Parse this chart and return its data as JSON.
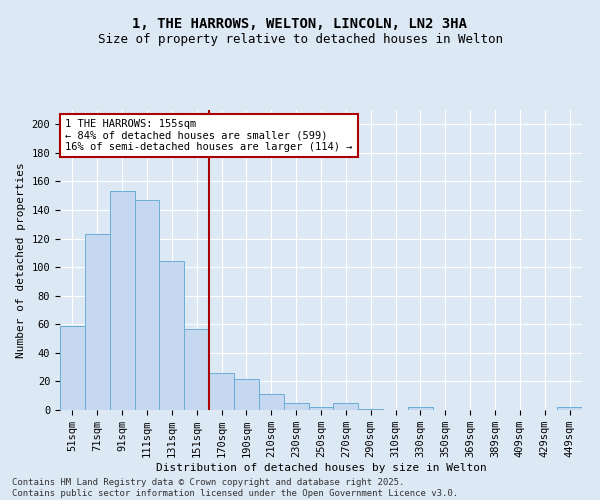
{
  "title": "1, THE HARROWS, WELTON, LINCOLN, LN2 3HA",
  "subtitle": "Size of property relative to detached houses in Welton",
  "xlabel": "Distribution of detached houses by size in Welton",
  "ylabel": "Number of detached properties",
  "categories": [
    "51sqm",
    "71sqm",
    "91sqm",
    "111sqm",
    "131sqm",
    "151sqm",
    "170sqm",
    "190sqm",
    "210sqm",
    "230sqm",
    "250sqm",
    "270sqm",
    "290sqm",
    "310sqm",
    "330sqm",
    "350sqm",
    "369sqm",
    "389sqm",
    "409sqm",
    "429sqm",
    "449sqm"
  ],
  "values": [
    59,
    123,
    153,
    147,
    104,
    57,
    26,
    22,
    11,
    5,
    2,
    5,
    1,
    0,
    2,
    0,
    0,
    0,
    0,
    0,
    2
  ],
  "bar_color": "#c5d8f0",
  "bar_edge_color": "#6aaed6",
  "vline_color": "#aa0000",
  "annotation_text": "1 THE HARROWS: 155sqm\n← 84% of detached houses are smaller (599)\n16% of semi-detached houses are larger (114) →",
  "annotation_box_color": "#aa0000",
  "ylim": [
    0,
    210
  ],
  "yticks": [
    0,
    20,
    40,
    60,
    80,
    100,
    120,
    140,
    160,
    180,
    200
  ],
  "footnote": "Contains HM Land Registry data © Crown copyright and database right 2025.\nContains public sector information licensed under the Open Government Licence v3.0.",
  "bg_color": "#dde8f5",
  "title_fontsize": 10,
  "subtitle_fontsize": 9,
  "axis_label_fontsize": 8,
  "tick_fontsize": 7.5,
  "annotation_fontsize": 7.5,
  "footnote_fontsize": 6.5
}
